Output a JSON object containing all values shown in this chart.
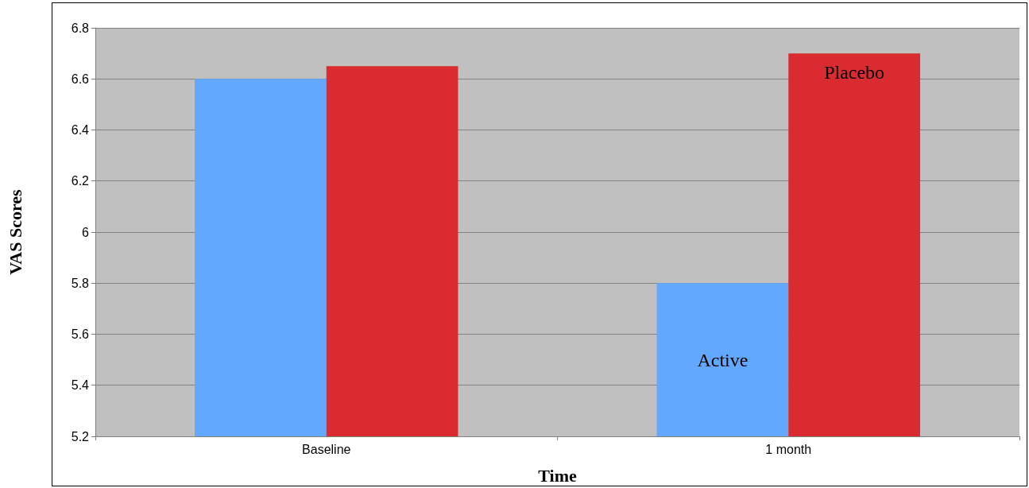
{
  "chart_data": {
    "type": "bar",
    "xlabel": "Time",
    "ylabel": "VAS Scores",
    "categories": [
      "Baseline",
      "1 month"
    ],
    "series": [
      {
        "name": "Active",
        "color": "#63a8ff",
        "values": [
          6.6,
          5.8
        ]
      },
      {
        "name": "Placebo",
        "color": "#d92b30",
        "values": [
          6.65,
          6.7
        ]
      }
    ],
    "ylim": [
      5.2,
      6.8
    ],
    "yticks": [
      5.2,
      5.4,
      5.6,
      5.8,
      6,
      6.2,
      6.4,
      6.6,
      6.8
    ],
    "grid": "y",
    "legend": false
  }
}
